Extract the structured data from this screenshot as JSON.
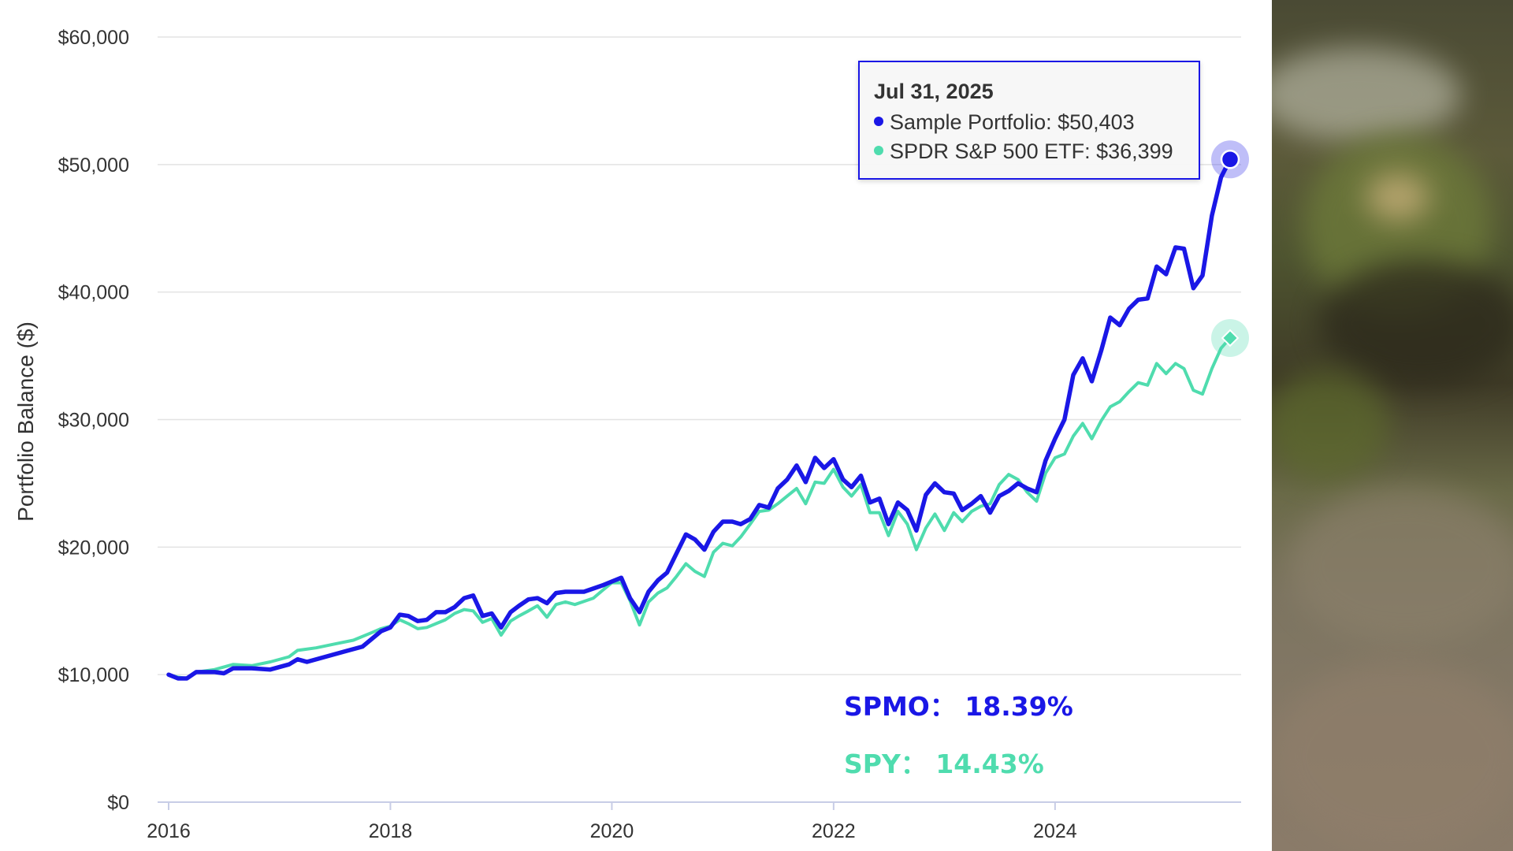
{
  "chart_data": {
    "type": "line",
    "ylabel": "Portfolio Balance ($)",
    "xlabel": "",
    "ylim": [
      0,
      60000
    ],
    "xlim": [
      "2016-01-01",
      "2025-07-31"
    ],
    "y_ticks": [
      "$0",
      "$10,000",
      "$20,000",
      "$30,000",
      "$40,000",
      "$50,000",
      "$60,000"
    ],
    "x_ticks": [
      "2016",
      "2018",
      "2020",
      "2022",
      "2024"
    ],
    "grid": true,
    "series": [
      {
        "name": "Sample Portfolio",
        "color": "#1a17e6",
        "points": [
          [
            "2016-01-01",
            10000
          ],
          [
            "2016-02-01",
            9700
          ],
          [
            "2016-03-01",
            9700
          ],
          [
            "2016-04-01",
            10200
          ],
          [
            "2016-06-01",
            10200
          ],
          [
            "2016-07-01",
            10100
          ],
          [
            "2016-08-01",
            10500
          ],
          [
            "2016-10-01",
            10500
          ],
          [
            "2016-12-01",
            10400
          ],
          [
            "2017-02-01",
            10800
          ],
          [
            "2017-03-01",
            11200
          ],
          [
            "2017-04-01",
            11000
          ],
          [
            "2017-06-01",
            11400
          ],
          [
            "2017-08-01",
            11800
          ],
          [
            "2017-10-01",
            12200
          ],
          [
            "2017-12-01",
            13400
          ],
          [
            "2018-01-01",
            13700
          ],
          [
            "2018-02-01",
            14700
          ],
          [
            "2018-03-01",
            14600
          ],
          [
            "2018-04-01",
            14200
          ],
          [
            "2018-05-01",
            14300
          ],
          [
            "2018-06-01",
            14900
          ],
          [
            "2018-07-01",
            14900
          ],
          [
            "2018-08-01",
            15300
          ],
          [
            "2018-09-01",
            16000
          ],
          [
            "2018-10-01",
            16200
          ],
          [
            "2018-11-01",
            14600
          ],
          [
            "2018-12-01",
            14800
          ],
          [
            "2019-01-01",
            13700
          ],
          [
            "2019-02-01",
            14900
          ],
          [
            "2019-03-01",
            15400
          ],
          [
            "2019-04-01",
            15900
          ],
          [
            "2019-05-01",
            16000
          ],
          [
            "2019-06-01",
            15600
          ],
          [
            "2019-07-01",
            16400
          ],
          [
            "2019-08-01",
            16500
          ],
          [
            "2019-10-01",
            16500
          ],
          [
            "2019-12-01",
            17000
          ],
          [
            "2020-01-01",
            17300
          ],
          [
            "2020-02-01",
            17600
          ],
          [
            "2020-03-01",
            16000
          ],
          [
            "2020-04-01",
            14900
          ],
          [
            "2020-05-01",
            16500
          ],
          [
            "2020-06-01",
            17400
          ],
          [
            "2020-07-01",
            18000
          ],
          [
            "2020-08-01",
            19500
          ],
          [
            "2020-09-01",
            21000
          ],
          [
            "2020-10-01",
            20600
          ],
          [
            "2020-11-01",
            19800
          ],
          [
            "2020-12-01",
            21200
          ],
          [
            "2021-01-01",
            22000
          ],
          [
            "2021-02-01",
            22000
          ],
          [
            "2021-03-01",
            21800
          ],
          [
            "2021-04-01",
            22200
          ],
          [
            "2021-05-01",
            23300
          ],
          [
            "2021-06-01",
            23100
          ],
          [
            "2021-07-01",
            24600
          ],
          [
            "2021-08-01",
            25300
          ],
          [
            "2021-09-01",
            26400
          ],
          [
            "2021-10-01",
            25100
          ],
          [
            "2021-11-01",
            27000
          ],
          [
            "2021-12-01",
            26200
          ],
          [
            "2022-01-01",
            26900
          ],
          [
            "2022-02-01",
            25300
          ],
          [
            "2022-03-01",
            24700
          ],
          [
            "2022-04-01",
            25600
          ],
          [
            "2022-05-01",
            23500
          ],
          [
            "2022-06-01",
            23800
          ],
          [
            "2022-07-01",
            21800
          ],
          [
            "2022-08-01",
            23500
          ],
          [
            "2022-09-01",
            22900
          ],
          [
            "2022-10-01",
            21300
          ],
          [
            "2022-11-01",
            24100
          ],
          [
            "2022-12-01",
            25000
          ],
          [
            "2023-01-01",
            24300
          ],
          [
            "2023-02-01",
            24200
          ],
          [
            "2023-03-01",
            22900
          ],
          [
            "2023-04-01",
            23400
          ],
          [
            "2023-05-01",
            24000
          ],
          [
            "2023-06-01",
            22700
          ],
          [
            "2023-07-01",
            24000
          ],
          [
            "2023-08-01",
            24400
          ],
          [
            "2023-09-01",
            25000
          ],
          [
            "2023-10-01",
            24600
          ],
          [
            "2023-11-01",
            24300
          ],
          [
            "2023-12-01",
            26800
          ],
          [
            "2024-01-01",
            28500
          ],
          [
            "2024-02-01",
            30000
          ],
          [
            "2024-03-01",
            33500
          ],
          [
            "2024-04-01",
            34800
          ],
          [
            "2024-05-01",
            33000
          ],
          [
            "2024-06-01",
            35400
          ],
          [
            "2024-07-01",
            38000
          ],
          [
            "2024-08-01",
            37400
          ],
          [
            "2024-09-01",
            38700
          ],
          [
            "2024-10-01",
            39400
          ],
          [
            "2024-11-01",
            39500
          ],
          [
            "2024-12-01",
            42000
          ],
          [
            "2025-01-01",
            41400
          ],
          [
            "2025-02-01",
            43500
          ],
          [
            "2025-03-01",
            43400
          ],
          [
            "2025-04-01",
            40300
          ],
          [
            "2025-05-01",
            41300
          ],
          [
            "2025-06-01",
            46000
          ],
          [
            "2025-07-01",
            49000
          ],
          [
            "2025-07-31",
            50403
          ]
        ]
      },
      {
        "name": "SPDR S&P 500 ETF",
        "color": "#4fdcae",
        "points": [
          [
            "2016-01-01",
            10000
          ],
          [
            "2016-02-01",
            9800
          ],
          [
            "2016-03-01",
            9700
          ],
          [
            "2016-04-01",
            10200
          ],
          [
            "2016-06-01",
            10400
          ],
          [
            "2016-08-01",
            10800
          ],
          [
            "2016-10-01",
            10700
          ],
          [
            "2016-12-01",
            11000
          ],
          [
            "2017-02-01",
            11400
          ],
          [
            "2017-03-01",
            11900
          ],
          [
            "2017-05-01",
            12100
          ],
          [
            "2017-07-01",
            12400
          ],
          [
            "2017-09-01",
            12700
          ],
          [
            "2017-11-01",
            13300
          ],
          [
            "2017-12-01",
            13600
          ],
          [
            "2018-01-01",
            13800
          ],
          [
            "2018-02-01",
            14300
          ],
          [
            "2018-03-01",
            14000
          ],
          [
            "2018-04-01",
            13600
          ],
          [
            "2018-05-01",
            13700
          ],
          [
            "2018-06-01",
            14000
          ],
          [
            "2018-07-01",
            14300
          ],
          [
            "2018-08-01",
            14800
          ],
          [
            "2018-09-01",
            15100
          ],
          [
            "2018-10-01",
            15000
          ],
          [
            "2018-11-01",
            14100
          ],
          [
            "2018-12-01",
            14400
          ],
          [
            "2019-01-01",
            13100
          ],
          [
            "2019-02-01",
            14200
          ],
          [
            "2019-03-01",
            14600
          ],
          [
            "2019-04-01",
            15000
          ],
          [
            "2019-05-01",
            15400
          ],
          [
            "2019-06-01",
            14500
          ],
          [
            "2019-07-01",
            15500
          ],
          [
            "2019-08-01",
            15700
          ],
          [
            "2019-09-01",
            15500
          ],
          [
            "2019-11-01",
            16000
          ],
          [
            "2019-12-01",
            16600
          ],
          [
            "2020-01-01",
            17200
          ],
          [
            "2020-02-01",
            17200
          ],
          [
            "2020-03-01",
            15800
          ],
          [
            "2020-04-01",
            13900
          ],
          [
            "2020-05-01",
            15700
          ],
          [
            "2020-06-01",
            16400
          ],
          [
            "2020-07-01",
            16800
          ],
          [
            "2020-08-01",
            17700
          ],
          [
            "2020-09-01",
            18700
          ],
          [
            "2020-10-01",
            18100
          ],
          [
            "2020-11-01",
            17700
          ],
          [
            "2020-12-01",
            19600
          ],
          [
            "2021-01-01",
            20300
          ],
          [
            "2021-02-01",
            20100
          ],
          [
            "2021-03-01",
            20800
          ],
          [
            "2021-04-01",
            21800
          ],
          [
            "2021-05-01",
            22800
          ],
          [
            "2021-06-01",
            22900
          ],
          [
            "2021-07-01",
            23400
          ],
          [
            "2021-08-01",
            24000
          ],
          [
            "2021-09-01",
            24600
          ],
          [
            "2021-10-01",
            23400
          ],
          [
            "2021-11-01",
            25100
          ],
          [
            "2021-12-01",
            25000
          ],
          [
            "2022-01-01",
            26100
          ],
          [
            "2022-02-01",
            24700
          ],
          [
            "2022-03-01",
            24000
          ],
          [
            "2022-04-01",
            24900
          ],
          [
            "2022-05-01",
            22700
          ],
          [
            "2022-06-01",
            22700
          ],
          [
            "2022-07-01",
            20900
          ],
          [
            "2022-08-01",
            22800
          ],
          [
            "2022-09-01",
            21800
          ],
          [
            "2022-10-01",
            19800
          ],
          [
            "2022-11-01",
            21500
          ],
          [
            "2022-12-01",
            22600
          ],
          [
            "2023-01-01",
            21300
          ],
          [
            "2023-02-01",
            22700
          ],
          [
            "2023-03-01",
            22000
          ],
          [
            "2023-04-01",
            22800
          ],
          [
            "2023-05-01",
            23200
          ],
          [
            "2023-06-01",
            23400
          ],
          [
            "2023-07-01",
            24900
          ],
          [
            "2023-08-01",
            25700
          ],
          [
            "2023-09-01",
            25300
          ],
          [
            "2023-10-01",
            24300
          ],
          [
            "2023-11-01",
            23600
          ],
          [
            "2023-12-01",
            25800
          ],
          [
            "2024-01-01",
            27000
          ],
          [
            "2024-02-01",
            27300
          ],
          [
            "2024-03-01",
            28700
          ],
          [
            "2024-04-01",
            29700
          ],
          [
            "2024-05-01",
            28500
          ],
          [
            "2024-06-01",
            29900
          ],
          [
            "2024-07-01",
            31000
          ],
          [
            "2024-08-01",
            31400
          ],
          [
            "2024-09-01",
            32200
          ],
          [
            "2024-10-01",
            32900
          ],
          [
            "2024-11-01",
            32700
          ],
          [
            "2024-12-01",
            34400
          ],
          [
            "2025-01-01",
            33600
          ],
          [
            "2025-02-01",
            34400
          ],
          [
            "2025-03-01",
            34000
          ],
          [
            "2025-04-01",
            32300
          ],
          [
            "2025-05-01",
            32000
          ],
          [
            "2025-06-01",
            34000
          ],
          [
            "2025-07-01",
            35600
          ],
          [
            "2025-07-31",
            36399
          ]
        ]
      }
    ],
    "tooltip": {
      "date": "Jul 31, 2025",
      "rows": [
        {
          "label": "Sample Portfolio: $50,403",
          "color": "#1a17e6"
        },
        {
          "label": "SPDR S&P 500 ETF: $36,399",
          "color": "#4fdcae"
        }
      ]
    },
    "annotations": [
      {
        "text": "SPMO：  18.39%",
        "color": "#1a17e6"
      },
      {
        "text": "SPY：  14.43%",
        "color": "#4fdcae"
      }
    ]
  }
}
